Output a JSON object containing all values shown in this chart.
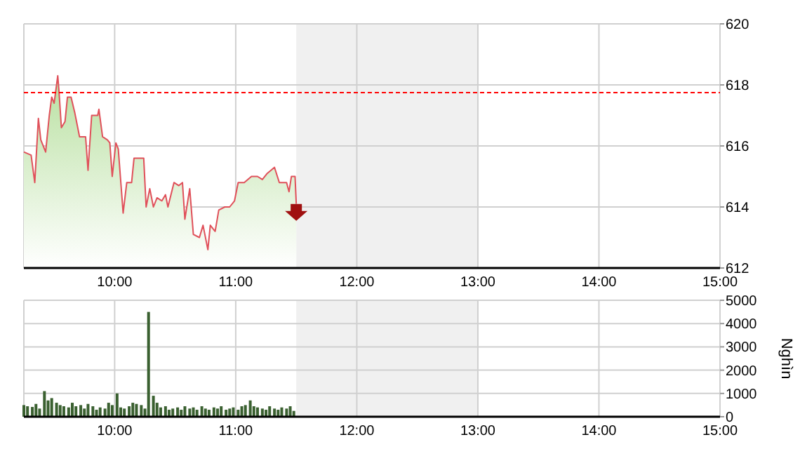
{
  "chart_data": [
    {
      "type": "area",
      "x": [
        9.25,
        9.31,
        9.34,
        9.37,
        9.39,
        9.43,
        9.46,
        9.48,
        9.5,
        9.53,
        9.54,
        9.56,
        9.59,
        9.61,
        9.64,
        9.67,
        9.71,
        9.76,
        9.78,
        9.81,
        9.86,
        9.87,
        9.9,
        9.94,
        9.96,
        9.98,
        10.01,
        10.03,
        10.07,
        10.1,
        10.14,
        10.16,
        10.22,
        10.24,
        10.26,
        10.29,
        10.32,
        10.35,
        10.39,
        10.42,
        10.44,
        10.49,
        10.53,
        10.56,
        10.58,
        10.62,
        10.65,
        10.7,
        10.73,
        10.77,
        10.79,
        10.83,
        10.86,
        10.91,
        10.95,
        10.99,
        11.02,
        11.07,
        11.13,
        11.18,
        11.22,
        11.26,
        11.32,
        11.36,
        11.42,
        11.44,
        11.46,
        11.49,
        11.5
      ],
      "series": [
        {
          "color": "#e0505a",
          "values": [
            615.8,
            615.7,
            614.8,
            616.9,
            616.2,
            615.8,
            617.0,
            617.6,
            617.4,
            618.3,
            617.8,
            616.6,
            616.8,
            617.6,
            617.6,
            617.1,
            616.3,
            616.3,
            615.2,
            617.0,
            617.0,
            617.2,
            616.3,
            616.2,
            616.1,
            615.0,
            616.1,
            615.9,
            613.8,
            614.8,
            614.8,
            615.6,
            615.6,
            615.6,
            614.0,
            614.6,
            614.0,
            614.3,
            614.2,
            614.4,
            614.0,
            614.8,
            614.7,
            614.8,
            613.6,
            614.6,
            613.1,
            613.0,
            613.4,
            612.6,
            613.4,
            613.2,
            613.9,
            614.0,
            614.0,
            614.2,
            614.8,
            614.8,
            615.0,
            615.0,
            614.9,
            615.1,
            615.3,
            614.8,
            614.8,
            614.5,
            615.0,
            615.0,
            614.1
          ]
        }
      ],
      "xlim": [
        9.25,
        15
      ],
      "xticks": [
        {
          "value": 10,
          "label": "10:00"
        },
        {
          "value": 11,
          "label": "11:00"
        },
        {
          "value": 12,
          "label": "12:00"
        },
        {
          "value": 13,
          "label": "13:00"
        },
        {
          "value": 14,
          "label": "14:00"
        },
        {
          "value": 15,
          "label": "15:00"
        }
      ],
      "ylim": [
        612,
        620
      ],
      "yticks": [
        612,
        614,
        616,
        618,
        620
      ],
      "grid": true,
      "ref_lines": [
        {
          "axis": "y",
          "value": 617.75,
          "color": "#ff0000",
          "line_style": "dashed"
        }
      ],
      "bands": [
        {
          "axis": "x",
          "from": 11.5,
          "to": 13,
          "color": "#f0f0f0"
        }
      ]
    },
    {
      "type": "bar",
      "ylabel": "Nghìn",
      "x": [
        9.25,
        9.28,
        9.32,
        9.35,
        9.38,
        9.42,
        9.45,
        9.48,
        9.52,
        9.55,
        9.58,
        9.62,
        9.65,
        9.68,
        9.72,
        9.75,
        9.78,
        9.82,
        9.85,
        9.88,
        9.92,
        9.95,
        9.98,
        10.02,
        10.05,
        10.08,
        10.12,
        10.15,
        10.18,
        10.22,
        10.25,
        10.28,
        10.32,
        10.35,
        10.38,
        10.42,
        10.45,
        10.48,
        10.52,
        10.55,
        10.58,
        10.62,
        10.65,
        10.68,
        10.72,
        10.75,
        10.78,
        10.82,
        10.85,
        10.88,
        10.92,
        10.95,
        10.98,
        11.02,
        11.05,
        11.08,
        11.12,
        11.15,
        11.18,
        11.22,
        11.25,
        11.28,
        11.32,
        11.35,
        11.38,
        11.42,
        11.45,
        11.48
      ],
      "series": [
        {
          "color": "#3a6030",
          "values": [
            500,
            450,
            420,
            550,
            350,
            1100,
            700,
            800,
            600,
            500,
            450,
            400,
            600,
            450,
            500,
            350,
            550,
            450,
            300,
            400,
            350,
            600,
            500,
            1000,
            400,
            350,
            450,
            600,
            550,
            500,
            350,
            4500,
            900,
            600,
            400,
            450,
            300,
            350,
            400,
            300,
            450,
            350,
            400,
            300,
            450,
            350,
            300,
            400,
            350,
            450,
            300,
            350,
            400,
            300,
            450,
            500,
            700,
            450,
            400,
            350,
            300,
            450,
            350,
            300,
            400,
            350,
            450,
            250
          ]
        }
      ],
      "xlim": [
        9.25,
        15
      ],
      "xticks": [
        {
          "value": 10,
          "label": "10:00"
        },
        {
          "value": 11,
          "label": "11:00"
        },
        {
          "value": 12,
          "label": "12:00"
        },
        {
          "value": 13,
          "label": "13:00"
        },
        {
          "value": 14,
          "label": "14:00"
        },
        {
          "value": 15,
          "label": "15:00"
        }
      ],
      "ylim": [
        0,
        5000
      ],
      "yticks": [
        0,
        1000,
        2000,
        3000,
        4000,
        5000
      ],
      "grid": true,
      "bands": [
        {
          "axis": "x",
          "from": 11.5,
          "to": 13,
          "color": "#f0f0f0"
        }
      ]
    }
  ]
}
